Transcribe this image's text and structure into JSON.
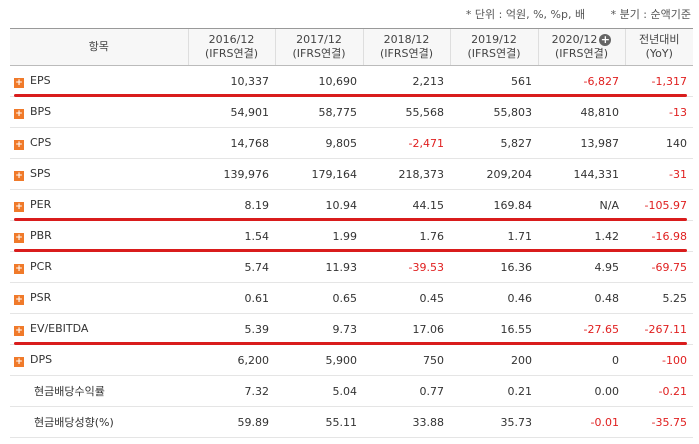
{
  "units": {
    "unit": "* 단위 : 억원, %, %p, 배",
    "period": "* 분기 : 순액기준"
  },
  "table": {
    "headers": [
      {
        "l1": "항목",
        "l2": ""
      },
      {
        "l1": "2016/12",
        "l2": "(IFRS연결)"
      },
      {
        "l1": "2017/12",
        "l2": "(IFRS연결)"
      },
      {
        "l1": "2018/12",
        "l2": "(IFRS연결)"
      },
      {
        "l1": "2019/12",
        "l2": "(IFRS연결)"
      },
      {
        "l1": "2020/12",
        "l2": "(IFRS연결)"
      },
      {
        "l1": "전년대비",
        "l2": "(YoY)"
      }
    ],
    "rows": [
      {
        "name": "EPS",
        "icon": true,
        "values": [
          "10,337",
          "10,690",
          "2,213",
          "561",
          "-6,827",
          "-1,317"
        ]
      },
      {
        "name": "BPS",
        "icon": true,
        "values": [
          "54,901",
          "58,775",
          "55,568",
          "55,803",
          "48,810",
          "-13"
        ]
      },
      {
        "name": "CPS",
        "icon": true,
        "values": [
          "14,768",
          "9,805",
          "-2,471",
          "5,827",
          "13,987",
          "140"
        ]
      },
      {
        "name": "SPS",
        "icon": true,
        "values": [
          "139,976",
          "179,164",
          "218,373",
          "209,204",
          "144,331",
          "-31"
        ]
      },
      {
        "name": "PER",
        "icon": true,
        "values": [
          "8.19",
          "10.94",
          "44.15",
          "169.84",
          "N/A",
          "-105.97"
        ]
      },
      {
        "name": "PBR",
        "icon": true,
        "values": [
          "1.54",
          "1.99",
          "1.76",
          "1.71",
          "1.42",
          "-16.98"
        ]
      },
      {
        "name": "PCR",
        "icon": true,
        "values": [
          "5.74",
          "11.93",
          "-39.53",
          "16.36",
          "4.95",
          "-69.75"
        ]
      },
      {
        "name": "PSR",
        "icon": true,
        "values": [
          "0.61",
          "0.65",
          "0.45",
          "0.46",
          "0.48",
          "5.25"
        ]
      },
      {
        "name": "EV/EBITDA",
        "icon": true,
        "values": [
          "5.39",
          "9.73",
          "17.06",
          "16.55",
          "-27.65",
          "-267.11"
        ]
      },
      {
        "name": "DPS",
        "icon": true,
        "values": [
          "6,200",
          "5,900",
          "750",
          "200",
          "0",
          "-100"
        ]
      },
      {
        "name": "현금배당수익률",
        "icon": false,
        "values": [
          "7.32",
          "5.04",
          "0.77",
          "0.21",
          "0.00",
          "-0.21"
        ]
      },
      {
        "name": "현금배당성향(%)",
        "icon": false,
        "values": [
          "59.89",
          "55.11",
          "33.88",
          "35.73",
          "-0.01",
          "-35.75"
        ]
      }
    ]
  },
  "colors": {
    "accent_plus": "#f07a2a",
    "negative": "#e02020",
    "annotation_line": "#d91c1c"
  },
  "icons": {
    "row_expand": "plus-square-icon",
    "header_expand": "plus-circle-icon"
  },
  "underlined_rows": [
    "EPS",
    "PER",
    "PBR",
    "EV/EBITDA"
  ]
}
